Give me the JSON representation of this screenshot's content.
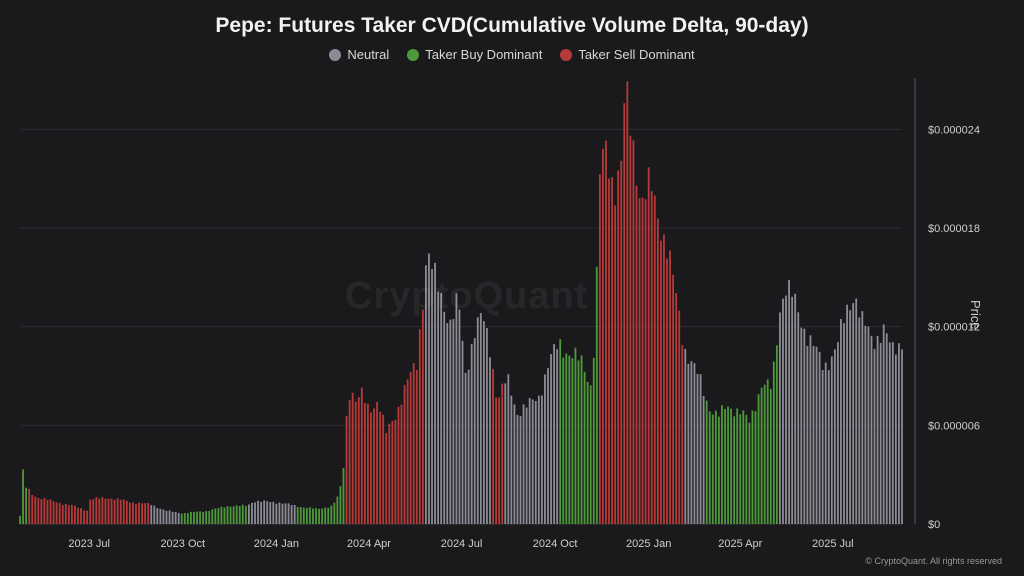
{
  "chart_data": {
    "type": "bar",
    "title": "Pepe: Futures Taker CVD(Cumulative Volume Delta, 90-day)",
    "ylabel": "Price",
    "ylim": [
      0,
      2.7e-05
    ],
    "y_ticks": [
      "$0",
      "$0.000006",
      "$0.000012",
      "$0.000018",
      "$0.000024"
    ],
    "y_tick_values": [
      0,
      6e-06,
      1.2e-05,
      1.8e-05,
      2.4e-05
    ],
    "x_ticks": [
      "2023 Jul",
      "2023 Oct",
      "2024 Jan",
      "2024 Apr",
      "2024 Jul",
      "2024 Oct",
      "2025 Jan",
      "2025 Apr",
      "2025 Jul"
    ],
    "x_tick_dates": [
      "2023-07-01",
      "2023-10-01",
      "2024-01-01",
      "2024-04-01",
      "2024-07-01",
      "2024-10-01",
      "2025-01-01",
      "2025-04-01",
      "2025-07-01"
    ],
    "x_range": [
      "2023-04-24",
      "2025-09-07"
    ],
    "grid": true,
    "legend_position": "top-center",
    "series": [
      {
        "name": "Neutral",
        "color": "#8c8c96"
      },
      {
        "name": "Taker Buy Dominant",
        "color": "#4e9a3a"
      },
      {
        "name": "Taker Sell Dominant",
        "color": "#b83a38"
      }
    ],
    "category_by_date": [
      {
        "from": "2023-04-24",
        "to": "2023-05-01",
        "category": "Taker Buy Dominant"
      },
      {
        "from": "2023-05-01",
        "to": "2023-08-30",
        "category": "Taker Sell Dominant"
      },
      {
        "from": "2023-08-30",
        "to": "2023-09-30",
        "category": "Neutral"
      },
      {
        "from": "2023-09-30",
        "to": "2023-12-03",
        "category": "Taker Buy Dominant"
      },
      {
        "from": "2023-12-03",
        "to": "2024-01-20",
        "category": "Neutral"
      },
      {
        "from": "2024-01-20",
        "to": "2024-03-09",
        "category": "Taker Buy Dominant"
      },
      {
        "from": "2024-03-09",
        "to": "2024-05-25",
        "category": "Taker Sell Dominant"
      },
      {
        "from": "2024-05-25",
        "to": "2024-08-01",
        "category": "Neutral"
      },
      {
        "from": "2024-08-01",
        "to": "2024-08-12",
        "category": "Taker Sell Dominant"
      },
      {
        "from": "2024-08-12",
        "to": "2024-08-30",
        "category": "Neutral"
      },
      {
        "from": "2024-08-30",
        "to": "2024-10-05",
        "category": "Neutral"
      },
      {
        "from": "2024-10-05",
        "to": "2024-11-12",
        "category": "Taker Buy Dominant"
      },
      {
        "from": "2024-11-12",
        "to": "2025-02-05",
        "category": "Taker Sell Dominant"
      },
      {
        "from": "2025-02-05",
        "to": "2025-02-25",
        "category": "Neutral"
      },
      {
        "from": "2025-02-25",
        "to": "2025-05-10",
        "category": "Taker Buy Dominant"
      },
      {
        "from": "2025-05-10",
        "to": "2025-09-07",
        "category": "Neutral"
      }
    ],
    "price_points": [
      [
        "2023-04-24",
        5e-07
      ],
      [
        "2023-04-26",
        3.5e-06
      ],
      [
        "2023-04-30",
        2.2e-06
      ],
      [
        "2023-05-08",
        1.7e-06
      ],
      [
        "2023-05-25",
        1.4e-06
      ],
      [
        "2023-06-15",
        1.1e-06
      ],
      [
        "2023-06-30",
        8e-07
      ],
      [
        "2023-07-01",
        1.5e-06
      ],
      [
        "2023-07-20",
        1.6e-06
      ],
      [
        "2023-08-15",
        1.3e-06
      ],
      [
        "2023-08-30",
        1.2e-06
      ],
      [
        "2023-09-15",
        8e-07
      ],
      [
        "2023-10-01",
        6.5e-07
      ],
      [
        "2023-10-25",
        8e-07
      ],
      [
        "2023-11-15",
        1.1e-06
      ],
      [
        "2023-12-03",
        1.1e-06
      ],
      [
        "2023-12-10",
        1.4e-06
      ],
      [
        "2024-01-05",
        1.3e-06
      ],
      [
        "2024-01-20",
        1.1e-06
      ],
      [
        "2024-02-10",
        9e-07
      ],
      [
        "2024-02-25",
        1.1e-06
      ],
      [
        "2024-03-03",
        1.8e-06
      ],
      [
        "2024-03-07",
        3.5e-06
      ],
      [
        "2024-03-10",
        6.5e-06
      ],
      [
        "2024-03-14",
        8.6e-06
      ],
      [
        "2024-03-18",
        7.4e-06
      ],
      [
        "2024-03-25",
        7.8e-06
      ],
      [
        "2024-04-01",
        7e-06
      ],
      [
        "2024-04-10",
        7.5e-06
      ],
      [
        "2024-04-18",
        5.5e-06
      ],
      [
        "2024-04-28",
        6.8e-06
      ],
      [
        "2024-05-08",
        8.5e-06
      ],
      [
        "2024-05-18",
        9.8e-06
      ],
      [
        "2024-05-25",
        1.45e-05
      ],
      [
        "2024-05-28",
        1.65e-05
      ],
      [
        "2024-06-03",
        1.52e-05
      ],
      [
        "2024-06-12",
        1.38e-05
      ],
      [
        "2024-06-20",
        1.22e-05
      ],
      [
        "2024-06-28",
        1.35e-05
      ],
      [
        "2024-07-05",
        9.2e-06
      ],
      [
        "2024-07-15",
        1.2e-05
      ],
      [
        "2024-07-22",
        1.25e-05
      ],
      [
        "2024-07-30",
        1.05e-05
      ],
      [
        "2024-08-05",
        7.5e-06
      ],
      [
        "2024-08-15",
        8.8e-06
      ],
      [
        "2024-08-25",
        6.8e-06
      ],
      [
        "2024-09-05",
        7.2e-06
      ],
      [
        "2024-09-15",
        7.8e-06
      ],
      [
        "2024-09-25",
        9.8e-06
      ],
      [
        "2024-10-05",
        1.1e-05
      ],
      [
        "2024-10-18",
        1.02e-05
      ],
      [
        "2024-10-28",
        9.8e-06
      ],
      [
        "2024-11-05",
        8.5e-06
      ],
      [
        "2024-11-10",
        1.2e-05
      ],
      [
        "2024-11-13",
        2.08e-05
      ],
      [
        "2024-11-20",
        2.28e-05
      ],
      [
        "2024-11-28",
        2.05e-05
      ],
      [
        "2024-12-05",
        2.18e-05
      ],
      [
        "2024-12-09",
        2.62e-05
      ],
      [
        "2024-12-16",
        2.35e-05
      ],
      [
        "2024-12-25",
        1.95e-05
      ],
      [
        "2025-01-03",
        2.05e-05
      ],
      [
        "2025-01-12",
        1.85e-05
      ],
      [
        "2025-01-20",
        1.65e-05
      ],
      [
        "2025-01-28",
        1.38e-05
      ],
      [
        "2025-02-05",
        1.08e-05
      ],
      [
        "2025-02-12",
        9.8e-06
      ],
      [
        "2025-02-20",
        8.8e-06
      ],
      [
        "2025-03-01",
        7.2e-06
      ],
      [
        "2025-03-10",
        6.5e-06
      ],
      [
        "2025-03-20",
        7.2e-06
      ],
      [
        "2025-04-01",
        6.8e-06
      ],
      [
        "2025-04-10",
        6.2e-06
      ],
      [
        "2025-04-22",
        8.5e-06
      ],
      [
        "2025-05-02",
        8.2e-06
      ],
      [
        "2025-05-10",
        1.32e-05
      ],
      [
        "2025-05-15",
        1.45e-05
      ],
      [
        "2025-05-22",
        1.38e-05
      ],
      [
        "2025-06-01",
        1.22e-05
      ],
      [
        "2025-06-12",
        1.08e-05
      ],
      [
        "2025-06-22",
        9.5e-06
      ],
      [
        "2025-07-05",
        1.08e-05
      ],
      [
        "2025-07-15",
        1.3e-05
      ],
      [
        "2025-07-22",
        1.42e-05
      ],
      [
        "2025-07-30",
        1.22e-05
      ],
      [
        "2025-08-10",
        1.12e-05
      ],
      [
        "2025-08-20",
        1.18e-05
      ],
      [
        "2025-08-28",
        1.05e-05
      ],
      [
        "2025-09-07",
        1.12e-05
      ]
    ]
  },
  "footer": "© CryptoQuant. All rights reserved",
  "watermark": "CryptoQuant"
}
